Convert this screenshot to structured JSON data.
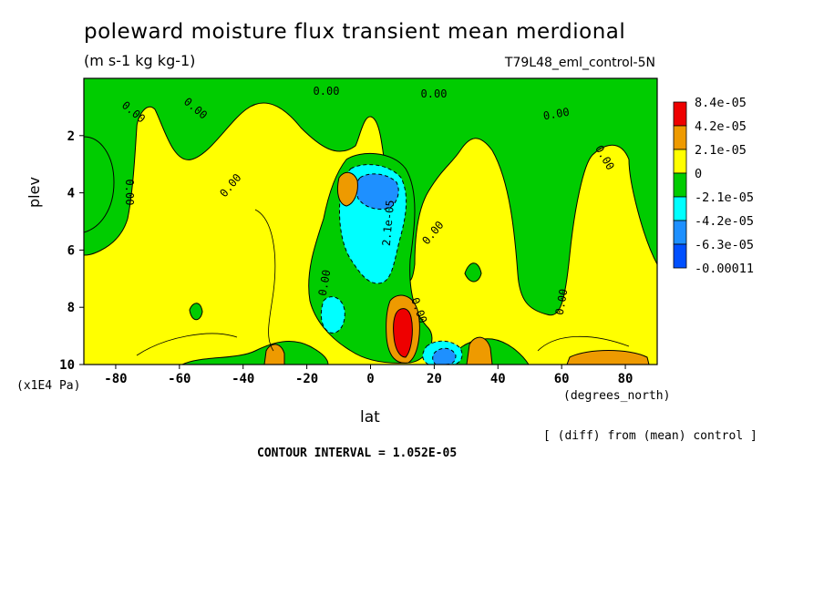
{
  "title": "poleward moisture flux transient mean merdional",
  "units": "(m s-1 kg kg-1)",
  "run_id": "T79L48_eml_control-5N",
  "note": "[ (diff) from (mean) control ]",
  "contour_interval_text": "CONTOUR INTERVAL = 1.052E-05",
  "chart_data": {
    "type": "heatmap",
    "title": "poleward moisture flux transient mean merdional",
    "xlabel": "lat",
    "ylabel": "plev",
    "x_units": "(degrees_north)",
    "y_units": "(x1E4 Pa)",
    "xlim": [
      -90,
      90
    ],
    "ylim": [
      10,
      0
    ],
    "x_ticks": [
      -80,
      -60,
      -40,
      -20,
      0,
      20,
      40,
      60,
      80
    ],
    "y_ticks": [
      2,
      4,
      6,
      8,
      10
    ],
    "colorbar": {
      "labels": [
        "8.4e-05",
        "4.2e-05",
        "2.1e-05",
        "0",
        "-2.1e-05",
        "-4.2e-05",
        "-6.3e-05",
        "-0.00011"
      ],
      "colors": [
        "#ee0000",
        "#ee9a00",
        "#ffff00",
        "#00cc00",
        "#00ffff",
        "#1e90ff",
        "#0000ff",
        "#0000ff"
      ],
      "swatch_colors": [
        "#ee0000",
        "#ee9a00",
        "#ffff00",
        "#00cc00",
        "#00ffff",
        "#1e90ff",
        "#0050ff"
      ]
    },
    "contour_labels": [
      "0.00",
      "0.00",
      "0.00",
      "0.00",
      "0.00",
      "0.00",
      "0.00",
      "0.00",
      "0.00",
      "0.00",
      "0.00",
      "0.00",
      "2.1e-05"
    ]
  }
}
